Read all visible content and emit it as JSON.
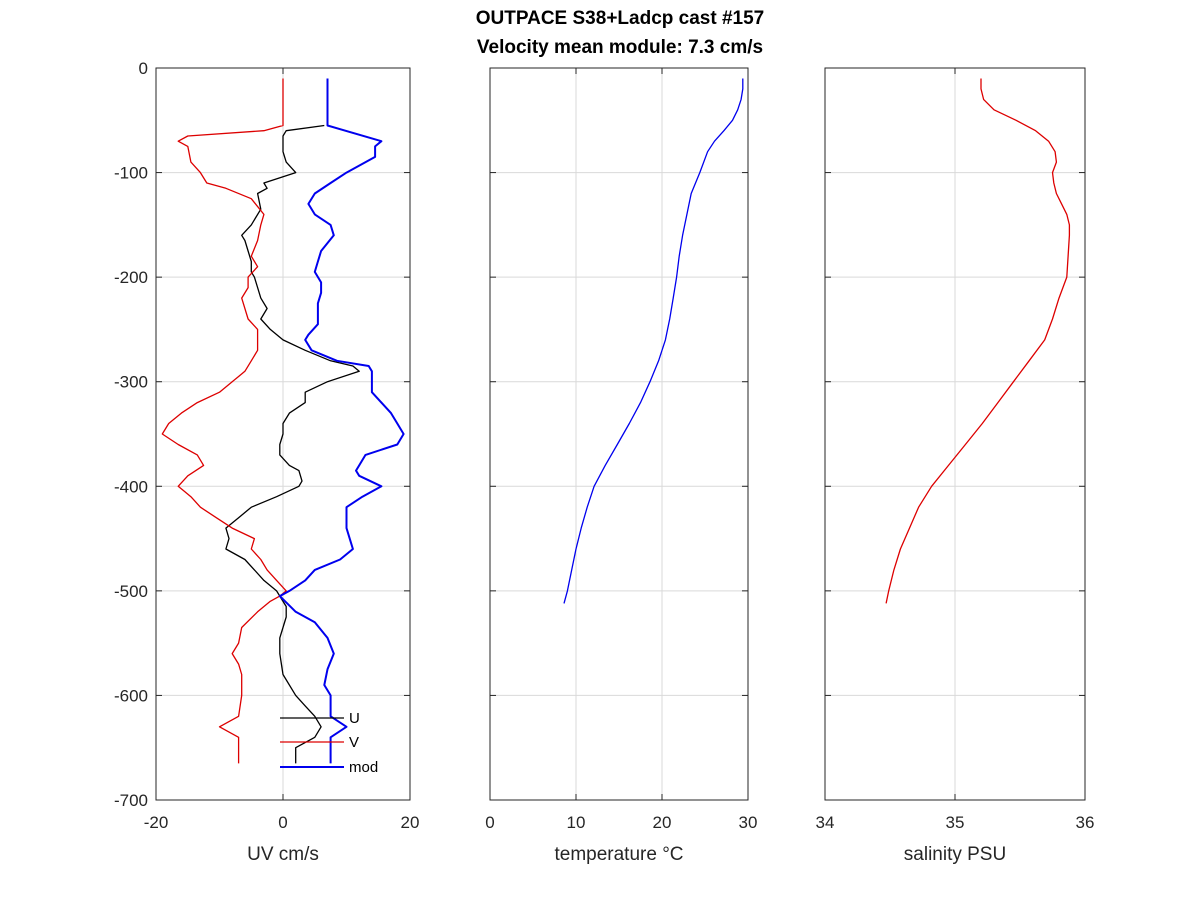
{
  "figure": {
    "title_line1": "OUTPACE S38+Ladcp cast #157",
    "title_line2": "Velocity mean module:  7.3 cm/s"
  },
  "chart_data": [
    {
      "type": "line",
      "xlabel": "UV cm/s",
      "ylabel": "",
      "xlim": [
        -20,
        20
      ],
      "ylim": [
        -700,
        0
      ],
      "xticks": [
        -20,
        0,
        20
      ],
      "yticks": [
        0,
        -100,
        -200,
        -300,
        -400,
        -500,
        -600,
        -700
      ],
      "grid": true,
      "legend": {
        "placement": "bottom-right",
        "entries": [
          "U",
          "V",
          "mod"
        ]
      },
      "series": [
        {
          "name": "U",
          "color": "#000000",
          "depth": [
            -10,
            -30,
            -55,
            -60,
            -65,
            -80,
            -90,
            -100,
            -110,
            -115,
            -120,
            -135,
            -150,
            -160,
            -165,
            -175,
            -185,
            -195,
            -200,
            -210,
            -220,
            -230,
            -240,
            -250,
            -260,
            -270,
            -280,
            -285,
            -290,
            -300,
            -310,
            -320,
            -330,
            -340,
            -350,
            -360,
            -370,
            -380,
            -385,
            -395,
            -400,
            -410,
            -420,
            -430,
            -440,
            -450,
            -460,
            -470,
            -480,
            -490,
            -500,
            -505,
            -515,
            -525,
            -535,
            -545,
            -560,
            -580,
            -600,
            -610,
            -620,
            -630,
            -640,
            -650,
            -665
          ],
          "values": [
            null,
            null,
            6.5,
            0.5,
            0,
            0,
            0.5,
            2,
            -3,
            -2.5,
            -4,
            -3.5,
            -5,
            -6.5,
            -6,
            -5.5,
            -5,
            -5,
            -4.5,
            -4,
            -3.5,
            -2.5,
            -3.5,
            -2,
            0,
            3.5,
            7.5,
            11,
            12,
            7,
            3.5,
            3.5,
            1,
            0,
            0,
            -0.5,
            -0.5,
            1,
            2.5,
            3,
            2.5,
            -1,
            -5,
            -7,
            -9,
            -8.5,
            -9,
            -6,
            -4.5,
            -3,
            -1,
            -0.5,
            0.5,
            0.5,
            0,
            -0.5,
            -0.5,
            0,
            2,
            3.5,
            5,
            6,
            5,
            2,
            2
          ]
        },
        {
          "name": "V",
          "color": "#dd0000",
          "depth": [
            -10,
            -55,
            -60,
            -65,
            -70,
            -75,
            -90,
            -100,
            -110,
            -115,
            -125,
            -140,
            -150,
            -165,
            -180,
            -190,
            -200,
            -210,
            -220,
            -240,
            -250,
            -260,
            -270,
            -280,
            -290,
            -295,
            -300,
            -310,
            -320,
            -330,
            -340,
            -350,
            -360,
            -370,
            -380,
            -390,
            -400,
            -405,
            -410,
            -420,
            -430,
            -440,
            -450,
            -460,
            -470,
            -480,
            -490,
            -500,
            -505,
            -510,
            -520,
            -535,
            -550,
            -560,
            -570,
            -580,
            -600,
            -620,
            -630,
            -640,
            -650,
            -665
          ],
          "values": [
            0,
            0,
            -3,
            -15,
            -16.5,
            -15,
            -14.5,
            -13,
            -12,
            -9,
            -5,
            -3,
            -3.5,
            -4,
            -5,
            -4,
            -5.5,
            -5.5,
            -6.5,
            -5.5,
            -4,
            -4,
            -4,
            -5,
            -6,
            -7,
            -8,
            -10,
            -13.5,
            -16,
            -18,
            -19,
            -16.5,
            -13.5,
            -12.5,
            -15,
            -16.5,
            -15.5,
            -14.5,
            -13,
            -10.5,
            -8,
            -4.5,
            -5,
            -3.5,
            -2.5,
            -1,
            0.5,
            -0.5,
            -2,
            -4,
            -6.5,
            -7,
            -8,
            -7,
            -6.5,
            -6.5,
            -7,
            -10,
            -7,
            -7,
            -7
          ]
        },
        {
          "name": "mod",
          "color": "#0000ee",
          "depth": [
            -10,
            -55,
            -70,
            -75,
            -85,
            -100,
            -110,
            -120,
            -130,
            -140,
            -150,
            -160,
            -175,
            -185,
            -195,
            -205,
            -215,
            -225,
            -235,
            -245,
            -255,
            -260,
            -270,
            -280,
            -285,
            -290,
            -310,
            -330,
            -340,
            -350,
            -360,
            -370,
            -380,
            -385,
            -390,
            -400,
            -410,
            -420,
            -430,
            -440,
            -450,
            -460,
            -470,
            -480,
            -490,
            -500,
            -505,
            -520,
            -530,
            -545,
            -560,
            -575,
            -590,
            -600,
            -610,
            -620,
            -630,
            -640,
            -650,
            -665
          ],
          "values": [
            7,
            7,
            15.5,
            14.5,
            14.5,
            10,
            7.5,
            5,
            4,
            5,
            7.5,
            8,
            6,
            5.5,
            5,
            6,
            6,
            5.5,
            5.5,
            5.5,
            4,
            3.5,
            4.5,
            8.5,
            13.5,
            14,
            14,
            17,
            18,
            19,
            18,
            13,
            12,
            11.5,
            12,
            15.5,
            12.5,
            10,
            10,
            10,
            10.5,
            11,
            9,
            5,
            3.5,
            1,
            -0.5,
            2,
            5,
            7,
            8,
            7,
            6.5,
            7.5,
            7.5,
            7.5,
            10,
            7.5,
            7.5,
            7.5
          ]
        }
      ]
    },
    {
      "type": "line",
      "xlabel": "temperature °C",
      "ylabel": "",
      "xlim": [
        0,
        30
      ],
      "ylim": [
        -700,
        0
      ],
      "xticks": [
        0,
        10,
        20,
        30
      ],
      "grid": true,
      "series": [
        {
          "color": "#0000ee",
          "depth": [
            -10,
            -20,
            -30,
            -40,
            -50,
            -60,
            -70,
            -80,
            -100,
            -120,
            -140,
            -160,
            -180,
            -200,
            -220,
            -240,
            -260,
            -280,
            -300,
            -320,
            -340,
            -360,
            -380,
            -400,
            -420,
            -440,
            -460,
            -480,
            -500,
            -512
          ],
          "values": [
            29.4,
            29.4,
            29.2,
            28.8,
            28.2,
            27.2,
            26.1,
            25.3,
            24.4,
            23.4,
            22.9,
            22.4,
            22.0,
            21.7,
            21.3,
            20.9,
            20.4,
            19.6,
            18.6,
            17.5,
            16.2,
            14.8,
            13.4,
            12.1,
            11.3,
            10.6,
            10.0,
            9.5,
            9.0,
            8.6
          ]
        }
      ]
    },
    {
      "type": "line",
      "xlabel": "salinity PSU",
      "ylabel": "",
      "xlim": [
        34,
        36
      ],
      "ylim": [
        -700,
        0
      ],
      "xticks": [
        34,
        35,
        36
      ],
      "grid": true,
      "series": [
        {
          "color": "#dd0000",
          "depth": [
            -10,
            -20,
            -30,
            -40,
            -50,
            -60,
            -70,
            -80,
            -90,
            -100,
            -110,
            -120,
            -130,
            -140,
            -150,
            -160,
            -180,
            -200,
            -220,
            -240,
            -260,
            -280,
            -300,
            -320,
            -340,
            -360,
            -380,
            -400,
            -420,
            -440,
            -460,
            -480,
            -500,
            -512
          ],
          "values": [
            35.2,
            35.2,
            35.22,
            35.3,
            35.47,
            35.62,
            35.72,
            35.77,
            35.78,
            35.75,
            35.76,
            35.78,
            35.82,
            35.86,
            35.88,
            35.88,
            35.87,
            35.86,
            35.8,
            35.75,
            35.69,
            35.57,
            35.45,
            35.33,
            35.21,
            35.08,
            34.95,
            34.82,
            34.72,
            34.65,
            34.58,
            34.53,
            34.49,
            34.47
          ]
        }
      ]
    }
  ]
}
